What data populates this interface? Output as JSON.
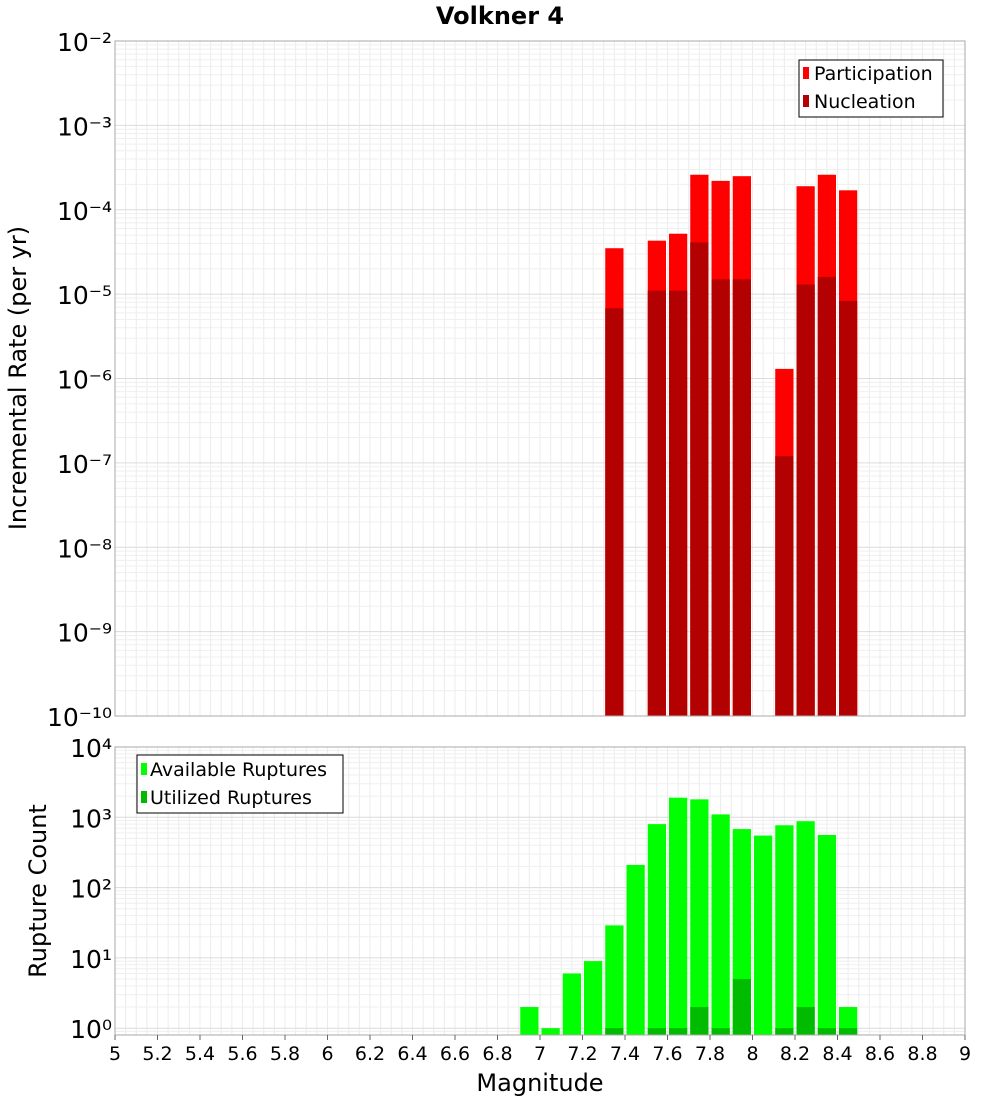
{
  "chart_data": {
    "title": "Volkner 4",
    "xlabel": "Magnitude",
    "xlim": [
      5,
      9
    ],
    "x_ticks": [
      "5",
      "5.2",
      "5.4",
      "5.6",
      "5.8",
      "6",
      "6.2",
      "6.4",
      "6.6",
      "6.8",
      "7",
      "7.2",
      "7.4",
      "7.6",
      "7.8",
      "8",
      "8.2",
      "8.4",
      "8.6",
      "8.8",
      "9"
    ],
    "panels": [
      {
        "type": "bar",
        "ylabel": "Incremental Rate (per yr)",
        "yscale": "log",
        "ylim": [
          1e-10,
          0.01
        ],
        "grid": true,
        "legend_position": "top-right",
        "series": [
          {
            "name": "Participation",
            "color": "#ff0000",
            "x": [
              7.35,
              7.55,
              7.65,
              7.75,
              7.85,
              7.95,
              8.15,
              8.25,
              8.35,
              8.45
            ],
            "values": [
              3.5e-05,
              4.3e-05,
              5.2e-05,
              0.00026,
              0.00022,
              0.00025,
              1.3e-06,
              0.00019,
              0.00026,
              0.00017
            ]
          },
          {
            "name": "Nucleation",
            "color": "#b30000",
            "x": [
              7.35,
              7.55,
              7.65,
              7.75,
              7.85,
              7.95,
              8.15,
              8.25,
              8.35,
              8.45
            ],
            "values": [
              6.8e-06,
              1.1e-05,
              1.1e-05,
              4.1e-05,
              1.5e-05,
              1.5e-05,
              1.2e-07,
              1.3e-05,
              1.6e-05,
              8.3e-06
            ]
          }
        ]
      },
      {
        "type": "bar",
        "ylabel": "Rupture Count",
        "yscale": "log",
        "ylim": [
          0.8,
          10000
        ],
        "grid": true,
        "legend_position": "top-left",
        "series": [
          {
            "name": "Available Ruptures",
            "color": "#00ff00",
            "x": [
              6.95,
              7.05,
              7.15,
              7.25,
              7.35,
              7.45,
              7.55,
              7.65,
              7.75,
              7.85,
              7.95,
              8.05,
              8.15,
              8.25,
              8.35,
              8.45
            ],
            "values": [
              2,
              1,
              6,
              9,
              29,
              210,
              800,
              1900,
              1800,
              1100,
              680,
              550,
              770,
              880,
              560,
              2
            ]
          },
          {
            "name": "Utilized Ruptures",
            "color": "#00bb00",
            "x": [
              7.35,
              7.55,
              7.65,
              7.75,
              7.85,
              7.95,
              8.15,
              8.25,
              8.35,
              8.45
            ],
            "values": [
              1,
              1,
              1,
              2,
              1,
              5,
              1,
              2,
              1,
              1
            ]
          }
        ]
      }
    ]
  }
}
